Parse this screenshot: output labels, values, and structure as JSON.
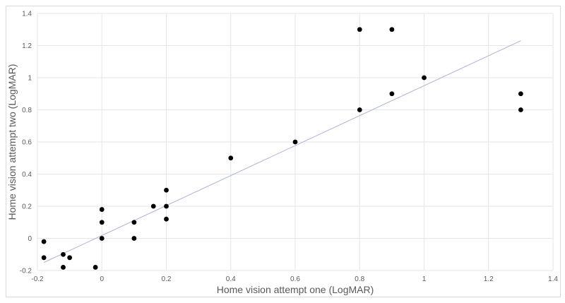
{
  "chart_data": {
    "type": "scatter",
    "title": "",
    "xlabel": "Home vision attempt one (LogMAR)",
    "ylabel": "Home vision attempt two (LogMAR)",
    "xlim": [
      -0.2,
      1.4
    ],
    "ylim": [
      -0.2,
      1.4
    ],
    "xticks": [
      -0.2,
      0,
      0.2,
      0.4,
      0.6,
      0.8,
      1,
      1.2,
      1.4
    ],
    "yticks": [
      -0.2,
      0,
      0.2,
      0.4,
      0.6,
      0.8,
      1,
      1.2,
      1.4
    ],
    "xtick_labels": [
      "-0.2",
      "0",
      "0.2",
      "0.4",
      "0.6",
      "0.8",
      "1",
      "1.2",
      "1.4"
    ],
    "ytick_labels": [
      "-0.2",
      "0",
      "0.2",
      "0.4",
      "0.6",
      "0.8",
      "1",
      "1.2",
      "1.4"
    ],
    "grid": true,
    "legend": "none",
    "series": [
      {
        "marker_color": "#000000",
        "points": [
          {
            "x": -0.18,
            "y": -0.02
          },
          {
            "x": -0.18,
            "y": -0.12
          },
          {
            "x": -0.12,
            "y": -0.1
          },
          {
            "x": -0.12,
            "y": -0.18
          },
          {
            "x": -0.1,
            "y": -0.12
          },
          {
            "x": -0.02,
            "y": -0.18
          },
          {
            "x": 0,
            "y": 0.18
          },
          {
            "x": 0,
            "y": 0.1
          },
          {
            "x": 0,
            "y": 0
          },
          {
            "x": 0.1,
            "y": 0.1
          },
          {
            "x": 0.1,
            "y": 0
          },
          {
            "x": 0.16,
            "y": 0.2
          },
          {
            "x": 0.2,
            "y": 0.3
          },
          {
            "x": 0.2,
            "y": 0.2
          },
          {
            "x": 0.2,
            "y": 0.12
          },
          {
            "x": 0.4,
            "y": 0.5
          },
          {
            "x": 0.6,
            "y": 0.6
          },
          {
            "x": 0.8,
            "y": 1.3
          },
          {
            "x": 0.8,
            "y": 0.8
          },
          {
            "x": 0.9,
            "y": 1.3
          },
          {
            "x": 0.9,
            "y": 0.9
          },
          {
            "x": 1,
            "y": 1
          },
          {
            "x": 1.3,
            "y": 0.9
          },
          {
            "x": 1.3,
            "y": 0.8
          }
        ]
      }
    ],
    "trendline": {
      "type": "linear",
      "color": "#aab4d4",
      "start": {
        "x": -0.18,
        "y": -0.15
      },
      "end": {
        "x": 1.3,
        "y": 1.23
      }
    }
  }
}
